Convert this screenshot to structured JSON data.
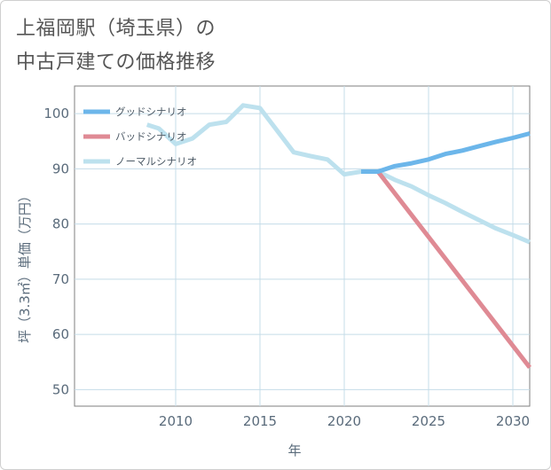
{
  "chart_data": {
    "type": "line",
    "title_line1": "上福岡駅（埼玉県）の",
    "title_line2": "中古戸建ての価格推移",
    "xlabel": "年",
    "ylabel": "坪（3.3㎡）単価（万円）",
    "xlim": [
      2004,
      2031
    ],
    "ylim": [
      47,
      105
    ],
    "x_ticks": [
      2010,
      2015,
      2020,
      2025,
      2030
    ],
    "y_ticks": [
      50,
      60,
      70,
      80,
      90,
      100
    ],
    "legend_position": "top-left",
    "series": [
      {
        "name": "グッドシナリオ",
        "color": "#6cb6ea",
        "x": [
          2021,
          2022,
          2023,
          2024,
          2025,
          2026,
          2027,
          2028,
          2029,
          2030,
          2031
        ],
        "y": [
          89.5,
          89.5,
          90.5,
          91.0,
          91.7,
          92.7,
          93.3,
          94.1,
          94.9,
          95.6,
          96.4
        ]
      },
      {
        "name": "バッドシナリオ",
        "color": "#df8a94",
        "x": [
          2021,
          2022,
          2031
        ],
        "y": [
          89.5,
          89.5,
          54.0
        ]
      },
      {
        "name": "ノーマルシナリオ",
        "color": "#bde1ee",
        "x": [
          2008.3,
          2009,
          2010,
          2011,
          2012,
          2013,
          2014,
          2015,
          2016,
          2017,
          2018,
          2019,
          2020,
          2021,
          2022,
          2023,
          2024,
          2025,
          2026,
          2027,
          2028,
          2029,
          2030,
          2031
        ],
        "y": [
          98.0,
          97.3,
          94.5,
          95.5,
          98.0,
          98.5,
          101.5,
          101.0,
          97.0,
          93.0,
          92.3,
          91.7,
          89.0,
          89.5,
          89.5,
          88.0,
          86.8,
          85.2,
          83.8,
          82.2,
          80.7,
          79.2,
          78.0,
          76.7
        ]
      }
    ]
  }
}
